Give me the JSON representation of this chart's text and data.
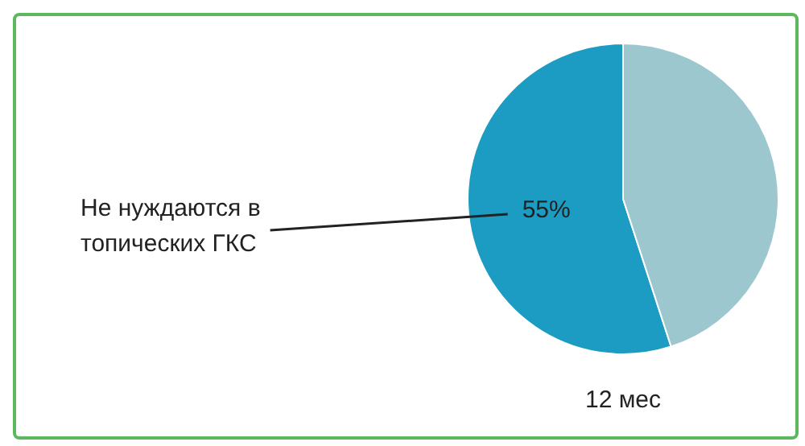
{
  "chart_data": {
    "type": "pie",
    "categories": [
      "Не нуждаются в топических ГКС",
      null
    ],
    "values": [
      55,
      45
    ],
    "colors": [
      "#1c9cc2",
      "#9cc7ce"
    ],
    "value_labels": [
      "55%",
      null
    ],
    "annotations": [
      "12 мес"
    ],
    "legend": false
  }
}
